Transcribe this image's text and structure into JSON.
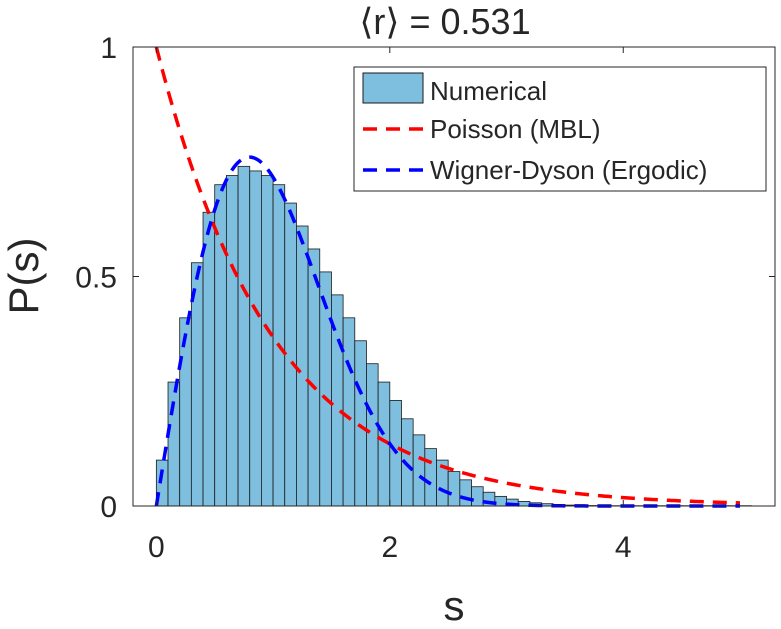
{
  "chart_data": {
    "type": "bar",
    "title": "⟨r⟩ = 0.531",
    "xlabel": "s",
    "ylabel": "P(s)",
    "xlim": [
      -0.2,
      5.3
    ],
    "ylim": [
      0,
      1
    ],
    "xticks": [
      0,
      2,
      4
    ],
    "xtick_labels": [
      "0",
      "2",
      "4"
    ],
    "yticks": [
      0,
      0.5,
      1
    ],
    "ytick_labels": [
      "0",
      "0.5",
      "1"
    ],
    "grid": false,
    "legend_position": "top-right",
    "histogram": {
      "name": "Numerical",
      "color": "#7EBFDF",
      "edge_color": "#1a1a1a",
      "bin_start": 0.0,
      "bin_width": 0.1,
      "values": [
        0.1,
        0.27,
        0.41,
        0.53,
        0.64,
        0.7,
        0.72,
        0.74,
        0.73,
        0.72,
        0.7,
        0.66,
        0.61,
        0.56,
        0.51,
        0.46,
        0.41,
        0.36,
        0.31,
        0.27,
        0.23,
        0.19,
        0.155,
        0.125,
        0.1,
        0.075,
        0.057,
        0.042,
        0.03,
        0.021,
        0.015,
        0.01,
        0.007,
        0.005,
        0.003,
        0.002,
        0.0015,
        0.001,
        0.0008,
        0.0006,
        0.0005,
        0.0004,
        0.0003,
        0.0002,
        0.0002,
        0.0001,
        0.0001,
        0.0001,
        0.0001,
        0.0001,
        0.0001
      ]
    },
    "curves": [
      {
        "name": "Poisson (MBL)",
        "formula": "exp(-s)",
        "color": "#FF0000",
        "dash": true,
        "x_range": [
          0,
          5
        ]
      },
      {
        "name": "Wigner-Dyson (Ergodic)",
        "formula": "(pi/2) s exp(-pi s^2/4)",
        "color": "#0000FF",
        "dash": true,
        "x_range": [
          0,
          5
        ]
      }
    ],
    "legend": [
      "Numerical",
      "Poisson (MBL)",
      "Wigner-Dyson (Ergodic)"
    ]
  }
}
